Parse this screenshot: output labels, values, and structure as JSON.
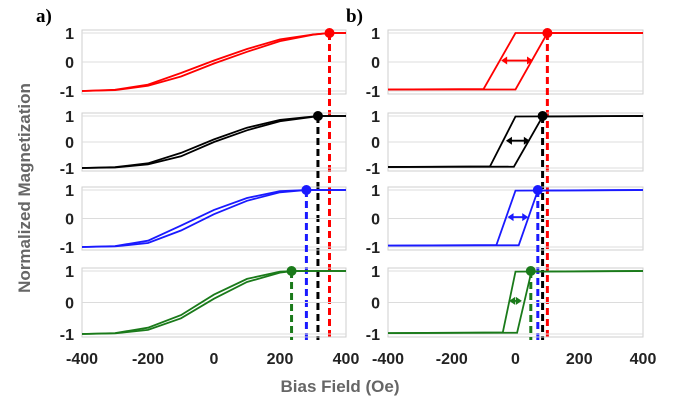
{
  "ylabel": "Normalized Magnetization",
  "xlabel": "Bias Field (Oe)",
  "colors": {
    "red": "#ff0000",
    "black": "#000000",
    "blue": "#1a1aff",
    "green": "#1a7a1a"
  },
  "chart_data": [
    {
      "panel_label": "a)",
      "type": "line",
      "xlim": [
        -400,
        400
      ],
      "ylim": [
        -1,
        1
      ],
      "xticks": [
        "-400",
        "-200",
        "0",
        "200",
        "400"
      ],
      "yticks": [
        "1",
        "0",
        "-1"
      ],
      "grid": true,
      "subplots": [
        {
          "color": "red",
          "upper": [
            [
              -400,
              -1
            ],
            [
              -300,
              -0.96
            ],
            [
              -200,
              -0.78
            ],
            [
              -100,
              -0.38
            ],
            [
              0,
              0.05
            ],
            [
              100,
              0.45
            ],
            [
              200,
              0.78
            ],
            [
              300,
              0.95
            ],
            [
              350,
              1
            ],
            [
              400,
              1
            ]
          ],
          "lower": [
            [
              -400,
              -1
            ],
            [
              -300,
              -0.97
            ],
            [
              -200,
              -0.82
            ],
            [
              -100,
              -0.5
            ],
            [
              0,
              -0.05
            ],
            [
              100,
              0.35
            ],
            [
              200,
              0.72
            ],
            [
              300,
              0.94
            ],
            [
              350,
              1
            ],
            [
              400,
              1
            ]
          ],
          "saturation_field": 350
        },
        {
          "color": "black",
          "upper": [
            [
              -400,
              -1
            ],
            [
              -300,
              -0.97
            ],
            [
              -200,
              -0.82
            ],
            [
              -100,
              -0.42
            ],
            [
              0,
              0.1
            ],
            [
              100,
              0.55
            ],
            [
              200,
              0.85
            ],
            [
              300,
              0.98
            ],
            [
              320,
              1
            ],
            [
              400,
              1
            ]
          ],
          "lower": [
            [
              -400,
              -1
            ],
            [
              -300,
              -0.98
            ],
            [
              -200,
              -0.86
            ],
            [
              -100,
              -0.55
            ],
            [
              0,
              0.0
            ],
            [
              100,
              0.45
            ],
            [
              200,
              0.8
            ],
            [
              300,
              0.97
            ],
            [
              320,
              1
            ],
            [
              400,
              1
            ]
          ],
          "saturation_field": 315
        },
        {
          "color": "blue",
          "upper": [
            [
              -400,
              -1
            ],
            [
              -300,
              -0.97
            ],
            [
              -200,
              -0.78
            ],
            [
              -100,
              -0.25
            ],
            [
              0,
              0.3
            ],
            [
              100,
              0.72
            ],
            [
              200,
              0.96
            ],
            [
              280,
              1
            ],
            [
              400,
              1
            ]
          ],
          "lower": [
            [
              -400,
              -1
            ],
            [
              -300,
              -0.98
            ],
            [
              -200,
              -0.86
            ],
            [
              -100,
              -0.42
            ],
            [
              0,
              0.15
            ],
            [
              100,
              0.62
            ],
            [
              200,
              0.92
            ],
            [
              280,
              1
            ],
            [
              400,
              1
            ]
          ],
          "saturation_field": 280
        },
        {
          "color": "green",
          "upper": [
            [
              -400,
              -1
            ],
            [
              -300,
              -0.97
            ],
            [
              -200,
              -0.8
            ],
            [
              -100,
              -0.4
            ],
            [
              0,
              0.25
            ],
            [
              100,
              0.75
            ],
            [
              200,
              0.98
            ],
            [
              240,
              1
            ],
            [
              400,
              1
            ]
          ],
          "lower": [
            [
              -400,
              -1
            ],
            [
              -300,
              -0.98
            ],
            [
              -200,
              -0.87
            ],
            [
              -100,
              -0.5
            ],
            [
              0,
              0.12
            ],
            [
              100,
              0.65
            ],
            [
              200,
              0.95
            ],
            [
              240,
              1
            ],
            [
              400,
              1
            ]
          ],
          "saturation_field": 235
        }
      ]
    },
    {
      "panel_label": "b)",
      "type": "line",
      "xlim": [
        -400,
        400
      ],
      "ylim": [
        -1,
        1
      ],
      "xticks": [
        "-400",
        "-200",
        "0",
        "200",
        "400"
      ],
      "yticks": [
        "1",
        "0",
        "-1"
      ],
      "grid": true,
      "subplots": [
        {
          "color": "red",
          "upper": [
            [
              -400,
              -0.95
            ],
            [
              -100,
              -0.93
            ],
            [
              0,
              1
            ],
            [
              400,
              1
            ]
          ],
          "lower": [
            [
              -400,
              -0.95
            ],
            [
              0,
              -0.95
            ],
            [
              100,
              1
            ],
            [
              400,
              1
            ]
          ],
          "saturation_field": 100,
          "arrow_x": [
            -45,
            55
          ]
        },
        {
          "color": "black",
          "upper": [
            [
              -400,
              -0.96
            ],
            [
              -80,
              -0.94
            ],
            [
              0,
              0.98
            ],
            [
              400,
              1
            ]
          ],
          "lower": [
            [
              -400,
              -0.96
            ],
            [
              -5,
              -0.95
            ],
            [
              85,
              0.98
            ],
            [
              400,
              1
            ]
          ],
          "saturation_field": 85,
          "arrow_x": [
            -30,
            45
          ]
        },
        {
          "color": "blue",
          "upper": [
            [
              -400,
              -0.95
            ],
            [
              -60,
              -0.93
            ],
            [
              0,
              0.98
            ],
            [
              400,
              1
            ]
          ],
          "lower": [
            [
              -400,
              -0.95
            ],
            [
              10,
              -0.94
            ],
            [
              70,
              0.98
            ],
            [
              400,
              1
            ]
          ],
          "saturation_field": 70,
          "arrow_x": [
            -25,
            40
          ]
        },
        {
          "color": "green",
          "upper": [
            [
              -400,
              -0.97
            ],
            [
              -40,
              -0.95
            ],
            [
              0,
              0.98
            ],
            [
              400,
              1
            ]
          ],
          "lower": [
            [
              -400,
              -0.97
            ],
            [
              5,
              -0.96
            ],
            [
              50,
              0.98
            ],
            [
              400,
              1
            ]
          ],
          "saturation_field": 48,
          "arrow_x": [
            -20,
            20
          ]
        }
      ]
    }
  ]
}
